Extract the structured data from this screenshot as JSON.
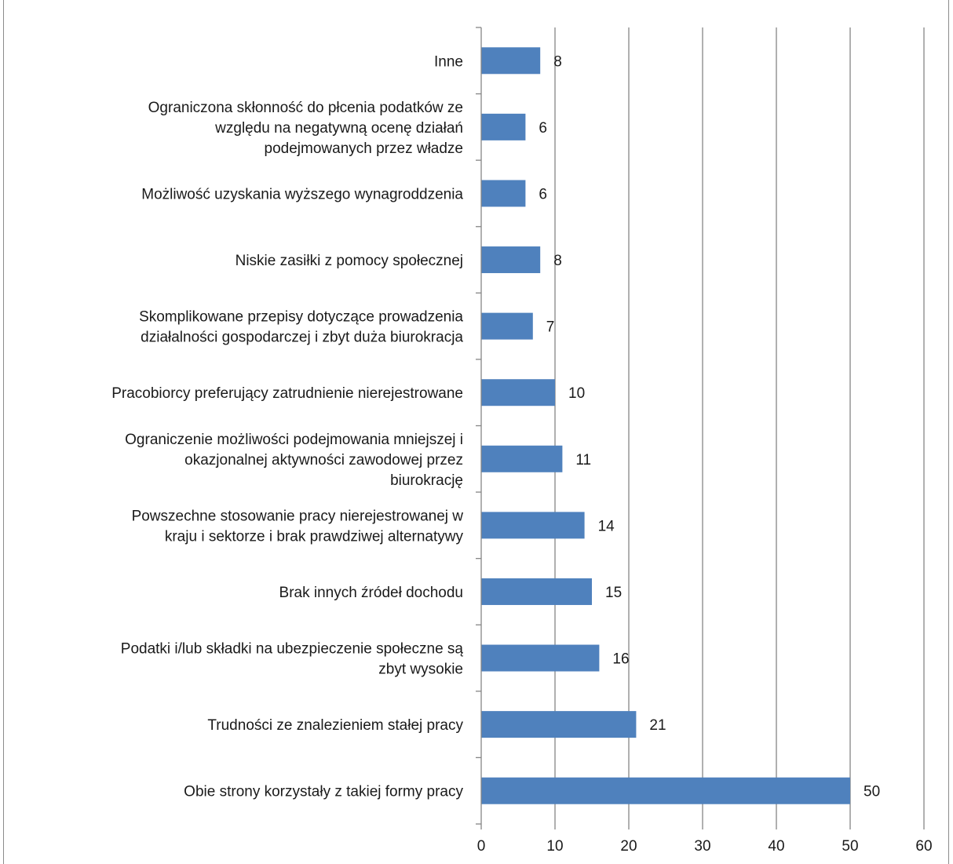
{
  "chart_data": {
    "type": "bar",
    "orientation": "horizontal",
    "title": "",
    "xlabel": "",
    "ylabel": "",
    "xlim": [
      0,
      60
    ],
    "x_ticks": [
      0,
      10,
      20,
      30,
      40,
      50,
      60
    ],
    "x_tick_labels": [
      "0",
      "10",
      "20",
      "30",
      "40",
      "50",
      "60"
    ],
    "grid": "vertical major gridlines",
    "legend": "none",
    "bar_color": "#4f81bd",
    "grid_color": "#868686",
    "categories": [
      "Inne",
      "Ograniczona skłonność do płcenia podatków ze względu na negatywną ocenę działań podejmowanych przez władze",
      "Możliwość uzyskania wyższego wynagroddzenia",
      "Niskie zasiłki z pomocy społecznej",
      "Skomplikowane przepisy dotyczące prowadzenia działalności gospodarczej i zbyt duża biurokracja",
      "Pracobiorcy preferujący zatrudnienie nierejestrowane",
      "Ograniczenie możliwości podejmowania mniejszej i okazjonalnej aktywności zawodowej przez biurokrację",
      "Powszechne stosowanie pracy nierejestrowanej w kraju i sektorze i brak prawdziwej alternatywy",
      "Brak innych źródeł dochodu",
      "Podatki i/lub składki na ubezpieczenie społeczne są zbyt wysokie",
      "Trudności ze znalezieniem stałej pracy",
      "Obie strony korzystały z takiej formy pracy"
    ],
    "category_lines": [
      [
        "Inne"
      ],
      [
        "Ograniczona skłonność do płcenia podatków ze",
        "względu na negatywną ocenę działań",
        "podejmowanych przez władze"
      ],
      [
        "Możliwość uzyskania wyższego wynagroddzenia"
      ],
      [
        "Niskie zasiłki z pomocy społecznej"
      ],
      [
        "Skomplikowane przepisy dotyczące prowadzenia",
        "działalności gospodarczej i zbyt duża biurokracja"
      ],
      [
        "Pracobiorcy preferujący zatrudnienie nierejestrowane"
      ],
      [
        "Ograniczenie możliwości podejmowania mniejszej i",
        "okazjonalnej aktywności zawodowej przez",
        "biurokrację"
      ],
      [
        "Powszechne stosowanie pracy nierejestrowanej w",
        "kraju i sektorze i brak prawdziwej alternatywy"
      ],
      [
        "Brak innych źródeł dochodu"
      ],
      [
        "Podatki i/lub składki na ubezpieczenie społeczne są",
        "zbyt wysokie"
      ],
      [
        "Trudności ze znalezieniem stałej pracy"
      ],
      [
        "Obie strony korzystały z takiej formy pracy"
      ]
    ],
    "values": [
      8,
      6,
      6,
      8,
      7,
      10,
      11,
      14,
      15,
      16,
      21,
      50
    ]
  }
}
